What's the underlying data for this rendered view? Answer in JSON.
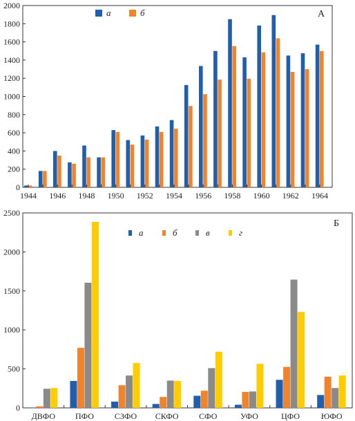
{
  "colors": {
    "a": "#1f5fae",
    "b": "#f0842c",
    "v": "#8a8a8a",
    "g": "#ffcc00"
  },
  "chart_data": [
    {
      "type": "bar",
      "panel_label": "А",
      "x": [
        1944,
        1945,
        1946,
        1947,
        1948,
        1949,
        1950,
        1951,
        1952,
        1953,
        1954,
        1955,
        1956,
        1957,
        1958,
        1959,
        1960,
        1961,
        1962,
        1963,
        1964
      ],
      "x_ticks": [
        1944,
        1946,
        1948,
        1950,
        1952,
        1954,
        1956,
        1958,
        1960,
        1962,
        1964
      ],
      "x_tick_labels": [
        "1944",
        "1946",
        "1948",
        "1950",
        "1952",
        "1954",
        "1956",
        "1958",
        "1960",
        "1962",
        "1964"
      ],
      "ylim": [
        0,
        2000
      ],
      "y_ticks": [
        0,
        200,
        400,
        600,
        800,
        1000,
        1200,
        1400,
        1600,
        1800,
        2000
      ],
      "y_tick_labels": [
        "0",
        "200",
        "400",
        "600",
        "800",
        "1000",
        "1200",
        "1400",
        "1600",
        "1800",
        "2000"
      ],
      "legend_position": "top-center",
      "grid": false,
      "series": [
        {
          "name": "а",
          "color_key": "a",
          "values": [
            20,
            180,
            400,
            275,
            460,
            330,
            630,
            520,
            570,
            670,
            740,
            1125,
            1335,
            1500,
            1850,
            1430,
            1780,
            1895,
            1450,
            1475,
            1570
          ]
        },
        {
          "name": "б",
          "color_key": "b",
          "values": [
            20,
            180,
            350,
            260,
            330,
            330,
            610,
            470,
            525,
            610,
            645,
            895,
            1025,
            1185,
            1555,
            1195,
            1485,
            1640,
            1270,
            1300,
            1500
          ]
        }
      ]
    },
    {
      "type": "bar",
      "panel_label": "Б",
      "categories": [
        "ДВФО",
        "ПФО",
        "СЗФО",
        "СКФО",
        "СФО",
        "УФО",
        "ЦФО",
        "ЮФО"
      ],
      "ylim": [
        0,
        2500
      ],
      "y_ticks": [
        0,
        500,
        1000,
        1500,
        2000,
        2500
      ],
      "y_tick_labels": [
        "0",
        "500",
        "1000",
        "1500",
        "2000",
        "2500"
      ],
      "legend_position": "top-center",
      "grid": false,
      "series": [
        {
          "name": "а",
          "color_key": "a",
          "values": [
            5,
            345,
            80,
            50,
            155,
            40,
            360,
            165
          ]
        },
        {
          "name": "б",
          "color_key": "b",
          "values": [
            20,
            770,
            290,
            140,
            220,
            205,
            525,
            400
          ]
        },
        {
          "name": "в",
          "color_key": "v",
          "values": [
            245,
            1605,
            415,
            350,
            510,
            210,
            1645,
            255
          ]
        },
        {
          "name": "г",
          "color_key": "g",
          "values": [
            255,
            2385,
            575,
            345,
            720,
            565,
            1230,
            415
          ]
        }
      ]
    }
  ]
}
